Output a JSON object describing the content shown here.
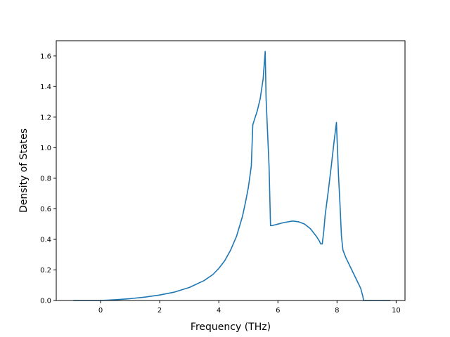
{
  "chart_data": {
    "type": "line",
    "title": "",
    "xlabel": "Frequency (THz)",
    "ylabel": "Density of States",
    "xlim": [
      -1.5,
      10.3
    ],
    "ylim": [
      0.0,
      1.7
    ],
    "xticks": [
      0,
      2,
      4,
      6,
      8,
      10
    ],
    "yticks": [
      0.0,
      0.2,
      0.4,
      0.6,
      0.8,
      1.0,
      1.2,
      1.4,
      1.6
    ],
    "ytick_labels": [
      "0.0",
      "0.2",
      "0.4",
      "0.6",
      "0.8",
      "1.0",
      "1.2",
      "1.4",
      "1.6"
    ],
    "grid": false,
    "legend": null,
    "colors": {
      "line": "#1f77b4",
      "axes": "#000000",
      "background": "#ffffff"
    },
    "series": [
      {
        "x": [
          -0.92,
          0.0,
          0.5,
          1.0,
          1.5,
          2.0,
          2.5,
          3.0,
          3.5,
          3.8,
          4.0,
          4.2,
          4.4,
          4.6,
          4.8,
          4.9,
          5.0,
          5.1,
          5.15,
          5.2,
          5.3,
          5.4,
          5.5,
          5.57,
          5.6,
          5.7,
          5.75,
          5.8,
          6.0,
          6.2,
          6.5,
          6.7,
          6.9,
          7.1,
          7.3,
          7.4,
          7.45,
          7.5,
          7.55,
          7.6,
          7.7,
          7.8,
          7.9,
          7.98,
          8.05,
          8.1,
          8.15,
          8.2,
          8.3,
          8.5,
          8.7,
          8.8,
          8.87,
          8.9,
          8.95,
          9.5,
          9.8
        ],
        "y": [
          0.0,
          0.0,
          0.005,
          0.012,
          0.022,
          0.036,
          0.055,
          0.085,
          0.13,
          0.17,
          0.21,
          0.26,
          0.33,
          0.42,
          0.55,
          0.64,
          0.74,
          0.88,
          1.15,
          1.18,
          1.24,
          1.32,
          1.45,
          1.63,
          1.32,
          0.88,
          0.49,
          0.49,
          0.5,
          0.51,
          0.52,
          0.515,
          0.5,
          0.47,
          0.42,
          0.39,
          0.37,
          0.37,
          0.45,
          0.56,
          0.71,
          0.87,
          1.04,
          1.165,
          0.82,
          0.63,
          0.42,
          0.33,
          0.28,
          0.2,
          0.12,
          0.08,
          0.03,
          0.0,
          0.0,
          0.0,
          0.0
        ]
      }
    ]
  }
}
